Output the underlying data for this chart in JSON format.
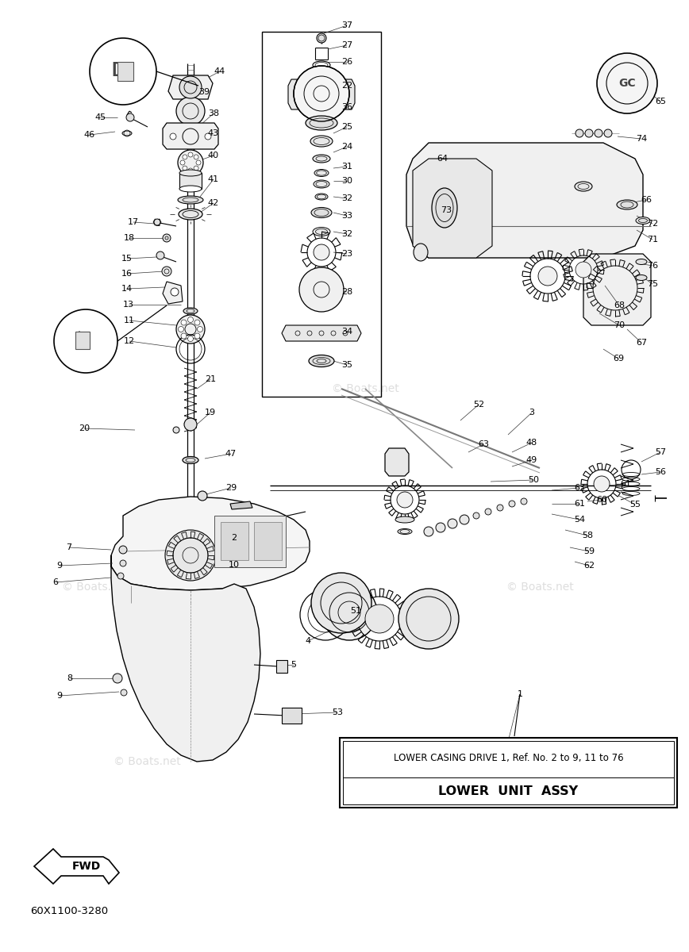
{
  "bg_color": "#ffffff",
  "line_color": "#000000",
  "watermark_text": "© Boats.net",
  "diagram_code": "60X1100-3280",
  "part_label_box_title": "LOWER  UNIT  ASSY",
  "part_label_box_sub": "LOWER CASING DRIVE 1, Ref. No. 2 to 9, 11 to 76",
  "fwd_arrow_text": "FWD",
  "lw_main": 1.0,
  "lw_thin": 0.6,
  "fs_label": 8.0,
  "labels": [
    [
      437,
      32,
      "37"
    ],
    [
      437,
      57,
      "27"
    ],
    [
      437,
      78,
      "26"
    ],
    [
      437,
      108,
      "22"
    ],
    [
      437,
      135,
      "36"
    ],
    [
      437,
      160,
      "25"
    ],
    [
      437,
      185,
      "24"
    ],
    [
      437,
      210,
      "31"
    ],
    [
      437,
      228,
      "30"
    ],
    [
      437,
      250,
      "32"
    ],
    [
      437,
      272,
      "33"
    ],
    [
      437,
      295,
      "32"
    ],
    [
      437,
      320,
      "23"
    ],
    [
      437,
      368,
      "28"
    ],
    [
      437,
      418,
      "34"
    ],
    [
      437,
      460,
      "35"
    ],
    [
      277,
      90,
      "44"
    ],
    [
      257,
      116,
      "39"
    ],
    [
      127,
      148,
      "45"
    ],
    [
      113,
      170,
      "46"
    ],
    [
      269,
      143,
      "38"
    ],
    [
      269,
      168,
      "43"
    ],
    [
      269,
      196,
      "40"
    ],
    [
      269,
      226,
      "41"
    ],
    [
      269,
      256,
      "42"
    ],
    [
      168,
      280,
      "17"
    ],
    [
      163,
      300,
      "18"
    ],
    [
      160,
      326,
      "15"
    ],
    [
      160,
      345,
      "16"
    ],
    [
      160,
      364,
      "14"
    ],
    [
      162,
      384,
      "13"
    ],
    [
      163,
      404,
      "11"
    ],
    [
      163,
      430,
      "12"
    ],
    [
      265,
      478,
      "21"
    ],
    [
      265,
      520,
      "19"
    ],
    [
      106,
      540,
      "20"
    ],
    [
      291,
      572,
      "47"
    ],
    [
      291,
      615,
      "29"
    ],
    [
      295,
      678,
      "2"
    ],
    [
      295,
      712,
      "10"
    ],
    [
      87,
      690,
      "7"
    ],
    [
      75,
      713,
      "9"
    ],
    [
      70,
      734,
      "6"
    ],
    [
      88,
      855,
      "8"
    ],
    [
      75,
      877,
      "9"
    ],
    [
      370,
      838,
      "5"
    ],
    [
      388,
      808,
      "4"
    ],
    [
      448,
      770,
      "51"
    ],
    [
      425,
      898,
      "53"
    ],
    [
      603,
      510,
      "52"
    ],
    [
      609,
      560,
      "63"
    ],
    [
      670,
      520,
      "3"
    ],
    [
      670,
      558,
      "48"
    ],
    [
      670,
      580,
      "49"
    ],
    [
      672,
      605,
      "50"
    ],
    [
      730,
      615,
      "63"
    ],
    [
      730,
      635,
      "61"
    ],
    [
      730,
      655,
      "54"
    ],
    [
      740,
      675,
      "58"
    ],
    [
      742,
      695,
      "59"
    ],
    [
      742,
      713,
      "62"
    ],
    [
      758,
      630,
      "60"
    ],
    [
      788,
      610,
      "61"
    ],
    [
      800,
      636,
      "55"
    ],
    [
      832,
      595,
      "56"
    ],
    [
      832,
      570,
      "57"
    ],
    [
      557,
      200,
      "64"
    ],
    [
      562,
      265,
      "73"
    ],
    [
      832,
      128,
      "65"
    ],
    [
      808,
      175,
      "74"
    ],
    [
      814,
      252,
      "66"
    ],
    [
      822,
      282,
      "72"
    ],
    [
      822,
      302,
      "71"
    ],
    [
      822,
      335,
      "76"
    ],
    [
      822,
      358,
      "75"
    ],
    [
      780,
      385,
      "68"
    ],
    [
      780,
      410,
      "70"
    ],
    [
      808,
      432,
      "67"
    ],
    [
      779,
      452,
      "69"
    ],
    [
      655,
      875,
      "1"
    ]
  ]
}
